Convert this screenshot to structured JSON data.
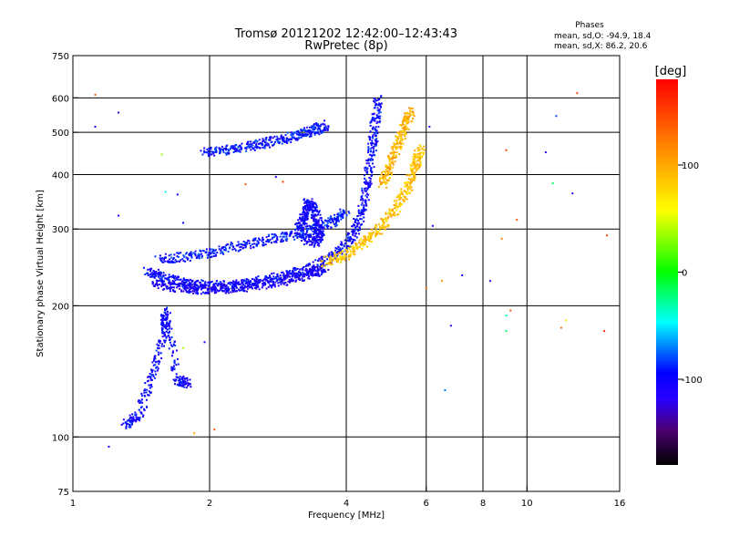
{
  "header": {
    "title": "Tromsø 20121202 12:42:00–12:43:43",
    "subtitle": "RwPretec (8p)"
  },
  "phase_box": {
    "heading": "Phases",
    "line_o": "mean, sd,O: -94.9, 18.4",
    "line_x": "mean, sd,X:  86.2, 20.6"
  },
  "colorbar": {
    "unit": "[deg]",
    "range": [
      -180,
      180
    ],
    "ticks": [
      {
        "value": 100,
        "label": "100"
      },
      {
        "value": 0,
        "label": "0"
      },
      {
        "value": -100,
        "label": "-100"
      }
    ],
    "stops": [
      {
        "at": 0.0,
        "color": "#000000"
      },
      {
        "at": 0.09,
        "color": "#4a0070"
      },
      {
        "at": 0.17,
        "color": "#2a00ff"
      },
      {
        "at": 0.24,
        "color": "#0000ff"
      },
      {
        "at": 0.37,
        "color": "#00ffff"
      },
      {
        "at": 0.5,
        "color": "#00ff00"
      },
      {
        "at": 0.66,
        "color": "#ffff00"
      },
      {
        "at": 0.8,
        "color": "#ff9900"
      },
      {
        "at": 1.0,
        "color": "#ff0000"
      }
    ]
  },
  "chart_data": {
    "type": "scatter",
    "title": "Tromsø 20121202 12:42:00–12:43:43",
    "subtitle": "RwPretec (8p)",
    "xlabel": "Frequency [MHz]",
    "ylabel": "Stationary phase Virtual Height [km]",
    "xscale": "log",
    "yscale": "log",
    "xlim": [
      1,
      16
    ],
    "ylim": [
      75,
      750
    ],
    "xticks": [
      {
        "value": 1,
        "label": "1"
      },
      {
        "value": 2,
        "label": "2"
      },
      {
        "value": 4,
        "label": "4"
      },
      {
        "value": 6,
        "label": "6"
      },
      {
        "value": 8,
        "label": "8"
      },
      {
        "value": 10,
        "label": "10"
      },
      {
        "value": 16,
        "label": "16"
      }
    ],
    "xgrid": [
      2,
      4,
      6,
      8,
      10
    ],
    "yticks": [
      {
        "value": 75,
        "label": "75"
      },
      {
        "value": 100,
        "label": "100"
      },
      {
        "value": 200,
        "label": "200"
      },
      {
        "value": 300,
        "label": "300"
      },
      {
        "value": 400,
        "label": "400"
      },
      {
        "value": 500,
        "label": "500"
      },
      {
        "value": 600,
        "label": "600"
      },
      {
        "value": 750,
        "label": "750"
      }
    ],
    "ygrid": [
      100,
      200,
      300,
      400,
      500,
      600
    ],
    "grid": true,
    "traces": [
      {
        "name": "O-mode F trace main",
        "phase": -100,
        "points": [
          [
            1.45,
            240
          ],
          [
            1.6,
            232
          ],
          [
            1.8,
            225
          ],
          [
            2.0,
            222
          ],
          [
            2.3,
            224
          ],
          [
            2.6,
            228
          ],
          [
            3.0,
            236
          ],
          [
            3.4,
            246
          ],
          [
            3.8,
            262
          ],
          [
            4.1,
            285
          ],
          [
            4.3,
            320
          ],
          [
            4.45,
            380
          ],
          [
            4.55,
            450
          ],
          [
            4.62,
            520
          ],
          [
            4.7,
            600
          ]
        ]
      },
      {
        "name": "O-mode F trace lower",
        "phase": -110,
        "points": [
          [
            1.5,
            224
          ],
          [
            1.7,
            220
          ],
          [
            1.9,
            218
          ],
          [
            2.2,
            219
          ],
          [
            2.5,
            222
          ],
          [
            2.9,
            228
          ],
          [
            3.3,
            236
          ],
          [
            3.6,
            244
          ]
        ]
      },
      {
        "name": "O-mode F trace upper",
        "phase": -95,
        "points": [
          [
            1.55,
            255
          ],
          [
            1.8,
            260
          ],
          [
            2.1,
            268
          ],
          [
            2.5,
            278
          ],
          [
            2.9,
            288
          ],
          [
            3.3,
            298
          ],
          [
            3.7,
            310
          ],
          [
            4.0,
            330
          ]
        ]
      },
      {
        "name": "O-mode 2F trace",
        "phase": -95,
        "points": [
          [
            1.95,
            450
          ],
          [
            2.2,
            456
          ],
          [
            2.5,
            466
          ],
          [
            2.8,
            478
          ],
          [
            3.1,
            490
          ],
          [
            3.4,
            505
          ],
          [
            3.6,
            520
          ]
        ]
      },
      {
        "name": "O-mode E trace",
        "phase": -100,
        "points": [
          [
            1.3,
            106
          ],
          [
            1.4,
            112
          ],
          [
            1.5,
            140
          ],
          [
            1.6,
            175
          ],
          [
            1.6,
            195
          ],
          [
            1.7,
            135
          ],
          [
            1.8,
            132
          ]
        ]
      },
      {
        "name": "O-mode near 3.3 MHz",
        "phase": -105,
        "points": [
          [
            3.15,
            300
          ],
          [
            3.25,
            320
          ],
          [
            3.3,
            345
          ],
          [
            3.4,
            330
          ],
          [
            3.5,
            300
          ],
          [
            3.45,
            280
          ],
          [
            3.2,
            285
          ]
        ]
      },
      {
        "name": "X-mode trace",
        "phase": 86,
        "points": [
          [
            3.6,
            252
          ],
          [
            4.0,
            262
          ],
          [
            4.4,
            280
          ],
          [
            4.8,
            305
          ],
          [
            5.2,
            340
          ],
          [
            5.5,
            380
          ],
          [
            5.7,
            420
          ],
          [
            5.85,
            460
          ]
        ]
      },
      {
        "name": "X-mode upper",
        "phase": 95,
        "points": [
          [
            4.8,
            380
          ],
          [
            5.0,
            420
          ],
          [
            5.2,
            470
          ],
          [
            5.4,
            520
          ],
          [
            5.55,
            560
          ]
        ]
      }
    ],
    "isolated_points": [
      {
        "x": 1.12,
        "y": 610,
        "phase": 140
      },
      {
        "x": 1.12,
        "y": 515,
        "phase": -110
      },
      {
        "x": 1.26,
        "y": 555,
        "phase": -130
      },
      {
        "x": 1.26,
        "y": 322,
        "phase": -120
      },
      {
        "x": 1.2,
        "y": 95,
        "phase": -100
      },
      {
        "x": 1.57,
        "y": 445,
        "phase": 40
      },
      {
        "x": 1.6,
        "y": 365,
        "phase": -50
      },
      {
        "x": 1.7,
        "y": 360,
        "phase": -100
      },
      {
        "x": 1.75,
        "y": 310,
        "phase": -100
      },
      {
        "x": 1.75,
        "y": 160,
        "phase": 40
      },
      {
        "x": 1.85,
        "y": 102,
        "phase": 100
      },
      {
        "x": 1.95,
        "y": 165,
        "phase": -110
      },
      {
        "x": 2.05,
        "y": 104,
        "phase": 140
      },
      {
        "x": 2.4,
        "y": 380,
        "phase": 140
      },
      {
        "x": 2.8,
        "y": 395,
        "phase": -120
      },
      {
        "x": 2.9,
        "y": 385,
        "phase": 150
      },
      {
        "x": 6.1,
        "y": 515,
        "phase": -120
      },
      {
        "x": 6.2,
        "y": 305,
        "phase": -110
      },
      {
        "x": 6.0,
        "y": 220,
        "phase": 130
      },
      {
        "x": 6.5,
        "y": 228,
        "phase": 110
      },
      {
        "x": 6.8,
        "y": 180,
        "phase": -120
      },
      {
        "x": 6.6,
        "y": 128,
        "phase": -70
      },
      {
        "x": 7.2,
        "y": 235,
        "phase": -100
      },
      {
        "x": 8.3,
        "y": 228,
        "phase": -120
      },
      {
        "x": 8.8,
        "y": 285,
        "phase": 120
      },
      {
        "x": 9.0,
        "y": 455,
        "phase": 150
      },
      {
        "x": 9.0,
        "y": 190,
        "phase": -30
      },
      {
        "x": 9.2,
        "y": 195,
        "phase": 140
      },
      {
        "x": 9.0,
        "y": 175,
        "phase": -20
      },
      {
        "x": 9.5,
        "y": 315,
        "phase": 140
      },
      {
        "x": 11.0,
        "y": 450,
        "phase": -120
      },
      {
        "x": 11.6,
        "y": 545,
        "phase": -80
      },
      {
        "x": 11.4,
        "y": 382,
        "phase": -20
      },
      {
        "x": 12.6,
        "y": 362,
        "phase": -120
      },
      {
        "x": 12.9,
        "y": 615,
        "phase": 150
      },
      {
        "x": 12.2,
        "y": 185,
        "phase": 70
      },
      {
        "x": 11.9,
        "y": 178,
        "phase": 130
      },
      {
        "x": 14.8,
        "y": 175,
        "phase": 170
      },
      {
        "x": 15.0,
        "y": 290,
        "phase": 150
      }
    ]
  }
}
